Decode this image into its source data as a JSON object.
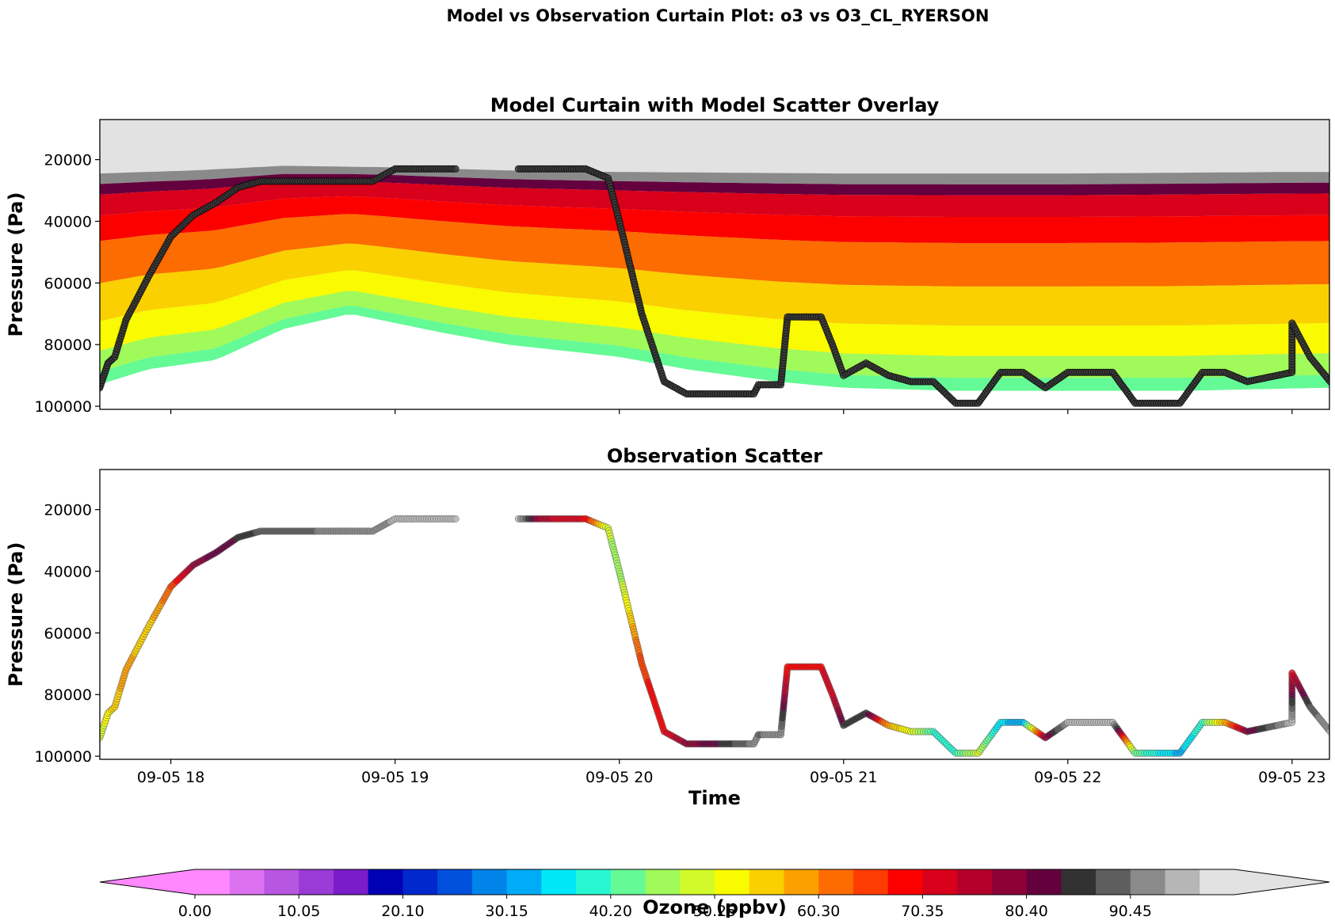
{
  "figure_title": "Model vs Observation Curtain Plot: o3 vs O3_CL_RYERSON",
  "colors": {
    "colormap": [
      "#ff88ff",
      "#dd72f0",
      "#b756e0",
      "#9a3bd6",
      "#7a1cc8",
      "#0000b4",
      "#0028cc",
      "#0050dc",
      "#0084ea",
      "#00acf8",
      "#00e8f8",
      "#28f8d2",
      "#64fa96",
      "#a0fa5a",
      "#d2fa2a",
      "#fafa00",
      "#fad000",
      "#fca000",
      "#fc6c00",
      "#fc3c00",
      "#fc0000",
      "#d8001a",
      "#b4002a",
      "#8c0036",
      "#64003e",
      "#323232",
      "#5e5e5e",
      "#8a8a8a",
      "#b6b6b6",
      "#e2e2e2"
    ],
    "under": "#ff88ff",
    "over": "#e2e2e2",
    "no_data": "#e2e2e2"
  },
  "chart_data": [
    {
      "type": "heatmap",
      "title": "Model Curtain with Model Scatter Overlay",
      "xlabel": "",
      "ylabel": "Pressure (Pa)",
      "ylim": [
        101000,
        7000
      ],
      "yticks": [
        "20000",
        "40000",
        "60000",
        "80000",
        "100000"
      ],
      "ytick_values": [
        20000,
        40000,
        60000,
        80000,
        100000
      ],
      "xlim": [
        "2024-09-05 17:41",
        "2024-09-05 23:10"
      ],
      "xtick_labels": [],
      "tropopause_pa": [
        [
          17.68,
          24500
        ],
        [
          18.1,
          23500
        ],
        [
          18.5,
          22000
        ],
        [
          19.0,
          22500
        ],
        [
          19.5,
          23500
        ],
        [
          20.0,
          24000
        ],
        [
          21.0,
          24500
        ],
        [
          22.0,
          24500
        ],
        [
          23.0,
          24000
        ],
        [
          23.17,
          24000
        ]
      ],
      "lowest_color_bound_pa": [
        [
          17.68,
          93000
        ],
        [
          17.9,
          88000
        ],
        [
          18.2,
          85000
        ],
        [
          18.5,
          75000
        ],
        [
          18.8,
          70000
        ],
        [
          19.2,
          76000
        ],
        [
          19.5,
          80000
        ],
        [
          20.0,
          84000
        ],
        [
          20.3,
          88000
        ],
        [
          20.7,
          92000
        ],
        [
          21.0,
          94000
        ],
        [
          21.5,
          95000
        ],
        [
          22.0,
          95000
        ],
        [
          22.5,
          95000
        ],
        [
          23.17,
          94000
        ]
      ],
      "overlay": "model values sampled along flight path (colored circles)"
    },
    {
      "type": "scatter",
      "title": "Observation Scatter",
      "xlabel": "Time",
      "ylabel": "Pressure (Pa)",
      "ylim": [
        101000,
        7000
      ],
      "yticks": [
        "20000",
        "40000",
        "60000",
        "80000",
        "100000"
      ],
      "ytick_values": [
        20000,
        40000,
        60000,
        80000,
        100000
      ],
      "xlim": [
        "2024-09-05 17:41",
        "2024-09-05 23:10"
      ],
      "xticks": [
        "09-05 18",
        "09-05 19",
        "09-05 20",
        "09-05 21",
        "09-05 22",
        "09-05 23"
      ],
      "xtick_hours": [
        18,
        19,
        20,
        21,
        22,
        23
      ],
      "flight_path": [
        {
          "t": 17.683,
          "p": 94000,
          "o3": 48
        },
        {
          "t": 17.72,
          "p": 86000,
          "o3": 52
        },
        {
          "t": 17.75,
          "p": 84000,
          "o3": 56
        },
        {
          "t": 17.8,
          "p": 72000,
          "o3": 58
        },
        {
          "t": 17.9,
          "p": 58000,
          "o3": 55
        },
        {
          "t": 18.0,
          "p": 45000,
          "o3": 64
        },
        {
          "t": 18.1,
          "p": 38000,
          "o3": 78
        },
        {
          "t": 18.2,
          "p": 34000,
          "o3": 82
        },
        {
          "t": 18.3,
          "p": 29000,
          "o3": 84
        },
        {
          "t": 18.4,
          "p": 27000,
          "o3": 88
        },
        {
          "t": 18.6,
          "p": 27000,
          "o3": 90
        },
        {
          "t": 18.8,
          "p": 27000,
          "o3": 92
        },
        {
          "t": 18.9,
          "p": 27000,
          "o3": 93
        },
        {
          "t": 19.0,
          "p": 23000,
          "o3": 94
        },
        {
          "t": 19.27,
          "p": 23000,
          "o3": 95
        },
        {
          "t": 19.55,
          "p": 23000,
          "o3": 95
        },
        {
          "t": 19.65,
          "p": 23000,
          "o3": 75
        },
        {
          "t": 19.85,
          "p": 23000,
          "o3": 70
        },
        {
          "t": 19.95,
          "p": 26000,
          "o3": 48
        },
        {
          "t": 20.0,
          "p": 40000,
          "o3": 44
        },
        {
          "t": 20.1,
          "p": 70000,
          "o3": 66
        },
        {
          "t": 20.2,
          "p": 92000,
          "o3": 70
        },
        {
          "t": 20.3,
          "p": 96000,
          "o3": 78
        },
        {
          "t": 20.45,
          "p": 96000,
          "o3": 84
        },
        {
          "t": 20.6,
          "p": 96000,
          "o3": 92
        },
        {
          "t": 20.62,
          "p": 93000,
          "o3": 90
        },
        {
          "t": 20.72,
          "p": 93000,
          "o3": 93
        },
        {
          "t": 20.75,
          "p": 71000,
          "o3": 68
        },
        {
          "t": 20.9,
          "p": 71000,
          "o3": 70
        },
        {
          "t": 20.95,
          "p": 80000,
          "o3": 72
        },
        {
          "t": 21.0,
          "p": 90000,
          "o3": 84
        },
        {
          "t": 21.1,
          "p": 86000,
          "o3": 86
        },
        {
          "t": 21.2,
          "p": 90000,
          "o3": 58
        },
        {
          "t": 21.3,
          "p": 92000,
          "o3": 50
        },
        {
          "t": 21.4,
          "p": 92000,
          "o3": 40
        },
        {
          "t": 21.5,
          "p": 99000,
          "o3": 40
        },
        {
          "t": 21.6,
          "p": 99000,
          "o3": 48
        },
        {
          "t": 21.7,
          "p": 89000,
          "o3": 34
        },
        {
          "t": 21.8,
          "p": 89000,
          "o3": 32
        },
        {
          "t": 21.9,
          "p": 94000,
          "o3": 78
        },
        {
          "t": 22.0,
          "p": 89000,
          "o3": 95
        },
        {
          "t": 22.2,
          "p": 89000,
          "o3": 95
        },
        {
          "t": 22.3,
          "p": 99000,
          "o3": 42
        },
        {
          "t": 22.5,
          "p": 99000,
          "o3": 32
        },
        {
          "t": 22.6,
          "p": 89000,
          "o3": 40
        },
        {
          "t": 22.7,
          "p": 89000,
          "o3": 58
        },
        {
          "t": 22.8,
          "p": 92000,
          "o3": 80
        },
        {
          "t": 23.0,
          "p": 89000,
          "o3": 96
        },
        {
          "t": 23.0,
          "p": 73000,
          "o3": 72
        },
        {
          "t": 23.08,
          "p": 84000,
          "o3": 88
        },
        {
          "t": 23.17,
          "p": 92000,
          "o3": 94
        }
      ]
    },
    {
      "type": "colorbar",
      "label": "Ozone (ppbv)",
      "vmin": 0,
      "vmax": 100.5,
      "ticks": [
        "0.00",
        "10.05",
        "20.10",
        "30.15",
        "40.20",
        "50.25",
        "60.30",
        "70.35",
        "80.40",
        "90.45"
      ],
      "tick_values": [
        0,
        10.05,
        20.1,
        30.15,
        40.2,
        50.25,
        60.3,
        70.35,
        80.4,
        90.45
      ],
      "extend": "both"
    }
  ]
}
